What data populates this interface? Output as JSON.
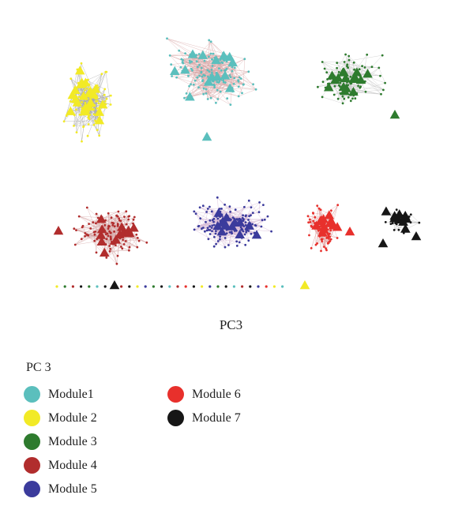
{
  "caption": "PC3",
  "legend": {
    "title": "PC 3",
    "columns": [
      [
        {
          "label": "Module1",
          "color": "#5bbfbd"
        },
        {
          "label": "Module 2",
          "color": "#f2ea26"
        },
        {
          "label": "Module 3",
          "color": "#2e7b2e"
        },
        {
          "label": "Module 4",
          "color": "#b12d2d"
        },
        {
          "label": "Module 5",
          "color": "#3b3b9c"
        }
      ],
      [
        {
          "label": "Module 6",
          "color": "#e8302c"
        },
        {
          "label": "Module 7",
          "color": "#161616"
        }
      ]
    ]
  },
  "modules": [
    {
      "name": "Module1",
      "color": "#5bbfbd"
    },
    {
      "name": "Module 2",
      "color": "#f2ea26"
    },
    {
      "name": "Module 3",
      "color": "#2e7b2e"
    },
    {
      "name": "Module 4",
      "color": "#b12d2d"
    },
    {
      "name": "Module 5",
      "color": "#3b3b9c"
    },
    {
      "name": "Module 6",
      "color": "#e8302c"
    },
    {
      "name": "Module 7",
      "color": "#161616"
    }
  ]
}
